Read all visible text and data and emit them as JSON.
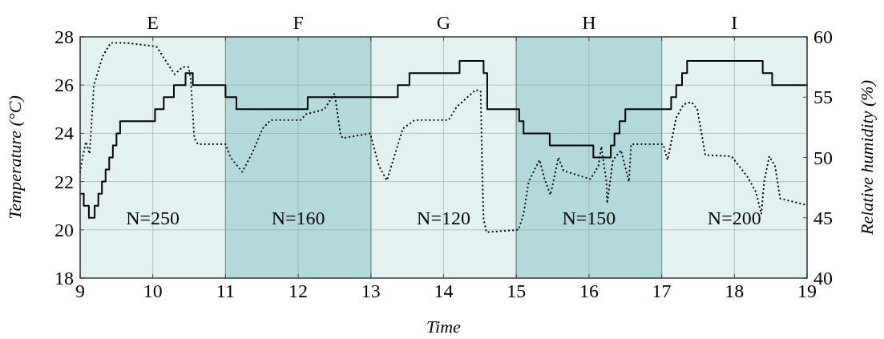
{
  "chart_data": {
    "type": "line",
    "xlabel": "Time",
    "ylabel": "Temperature (°C)",
    "y2label": "Relative humidity (%)",
    "xlim": [
      9,
      19
    ],
    "xticks": [
      9,
      10,
      11,
      12,
      13,
      14,
      15,
      16,
      17,
      18,
      19
    ],
    "ylim": [
      18,
      28
    ],
    "yticks": [
      18,
      20,
      22,
      24,
      26,
      28
    ],
    "y2lim": [
      40,
      60
    ],
    "y2ticks": [
      40,
      45,
      50,
      55,
      60
    ],
    "grid": true,
    "bands": [
      {
        "axis": "x",
        "from": 9,
        "to": 11,
        "label": "E",
        "color": "#e4f1f1"
      },
      {
        "axis": "x",
        "from": 11,
        "to": 13,
        "label": "F",
        "color": "#b2dada"
      },
      {
        "axis": "x",
        "from": 13,
        "to": 15,
        "label": "G",
        "color": "#e4f1f1"
      },
      {
        "axis": "x",
        "from": 15,
        "to": 17,
        "label": "H",
        "color": "#b2dada"
      },
      {
        "axis": "x",
        "from": 17,
        "to": 19,
        "label": "I",
        "color": "#e4f1f1"
      }
    ],
    "annotations": [
      "N=250",
      "N=160",
      "N=120",
      "N=150",
      "N=200"
    ],
    "series": [
      {
        "type": "step",
        "color": "#000000",
        "line_style": "solid",
        "x": [
          9,
          9.05,
          9.12,
          9.2,
          9.25,
          9.3,
          9.35,
          9.4,
          9.45,
          9.5,
          9.55,
          10.03,
          10.15,
          10.29,
          10.45,
          10.55,
          11.0,
          11.15,
          12.13,
          13.37,
          13.53,
          14.22,
          14.55,
          14.6,
          15.04,
          15.1,
          15.46,
          16.06,
          16.3,
          16.35,
          16.42,
          16.5,
          17.13,
          17.2,
          17.28,
          17.35,
          18.39,
          18.52,
          19
        ],
        "values": [
          21.5,
          21,
          20.5,
          21,
          21.5,
          22,
          22.5,
          23,
          23.5,
          24,
          24.5,
          25,
          25.5,
          26,
          26.5,
          26,
          25.5,
          25,
          25.5,
          26,
          26.5,
          27,
          26.5,
          25,
          24.5,
          24,
          23.5,
          23,
          23.5,
          24,
          24.5,
          25,
          25.5,
          26,
          26.5,
          27,
          26.5,
          26,
          26
        ]
      },
      {
        "type": "line",
        "axis": "y2",
        "color": "#000000",
        "line_style": "dotted",
        "x": [
          9.0,
          9.02,
          9.08,
          9.13,
          9.19,
          9.31,
          9.42,
          9.64,
          10.05,
          10.19,
          10.3,
          10.41,
          10.49,
          10.52,
          10.57,
          10.62,
          11.0,
          11.07,
          11.23,
          11.37,
          11.51,
          11.62,
          12.03,
          12.11,
          12.25,
          12.36,
          12.5,
          12.58,
          12.61,
          12.99,
          13.11,
          13.22,
          13.44,
          13.6,
          14.07,
          14.18,
          14.44,
          14.51,
          14.53,
          14.55,
          14.59,
          15.03,
          15.1,
          15.17,
          15.32,
          15.39,
          15.47,
          15.58,
          15.65,
          16.02,
          16.13,
          16.17,
          16.24,
          16.25,
          16.33,
          16.44,
          16.55,
          16.58,
          17.02,
          17.08,
          17.2,
          17.3,
          17.41,
          17.49,
          17.6,
          17.96,
          18.18,
          18.3,
          18.37,
          18.41,
          18.48,
          18.56,
          18.63,
          18.96,
          19.0
        ],
        "values": [
          48.8,
          49.6,
          51.3,
          50.3,
          56.0,
          58.4,
          59.5,
          59.5,
          59.2,
          57.9,
          56.9,
          57.5,
          57.5,
          56.6,
          51.6,
          51.1,
          51.1,
          50.0,
          48.8,
          50.4,
          52.4,
          53.1,
          53.1,
          53.6,
          53.8,
          54.0,
          55.3,
          52.0,
          51.6,
          52.0,
          49.3,
          48.1,
          52.4,
          53.1,
          53.1,
          54.2,
          55.6,
          55.5,
          49.3,
          44.9,
          43.8,
          44.0,
          45.3,
          48.0,
          49.8,
          48.2,
          46.9,
          50.0,
          48.9,
          48.2,
          49.3,
          50.9,
          48.0,
          46.2,
          49.8,
          50.6,
          48.0,
          51.1,
          51.1,
          49.8,
          53.3,
          54.4,
          54.6,
          54.0,
          50.2,
          50.1,
          48.4,
          47.1,
          45.3,
          48.0,
          50.1,
          49.3,
          46.6,
          46.1,
          46.0
        ]
      }
    ]
  }
}
